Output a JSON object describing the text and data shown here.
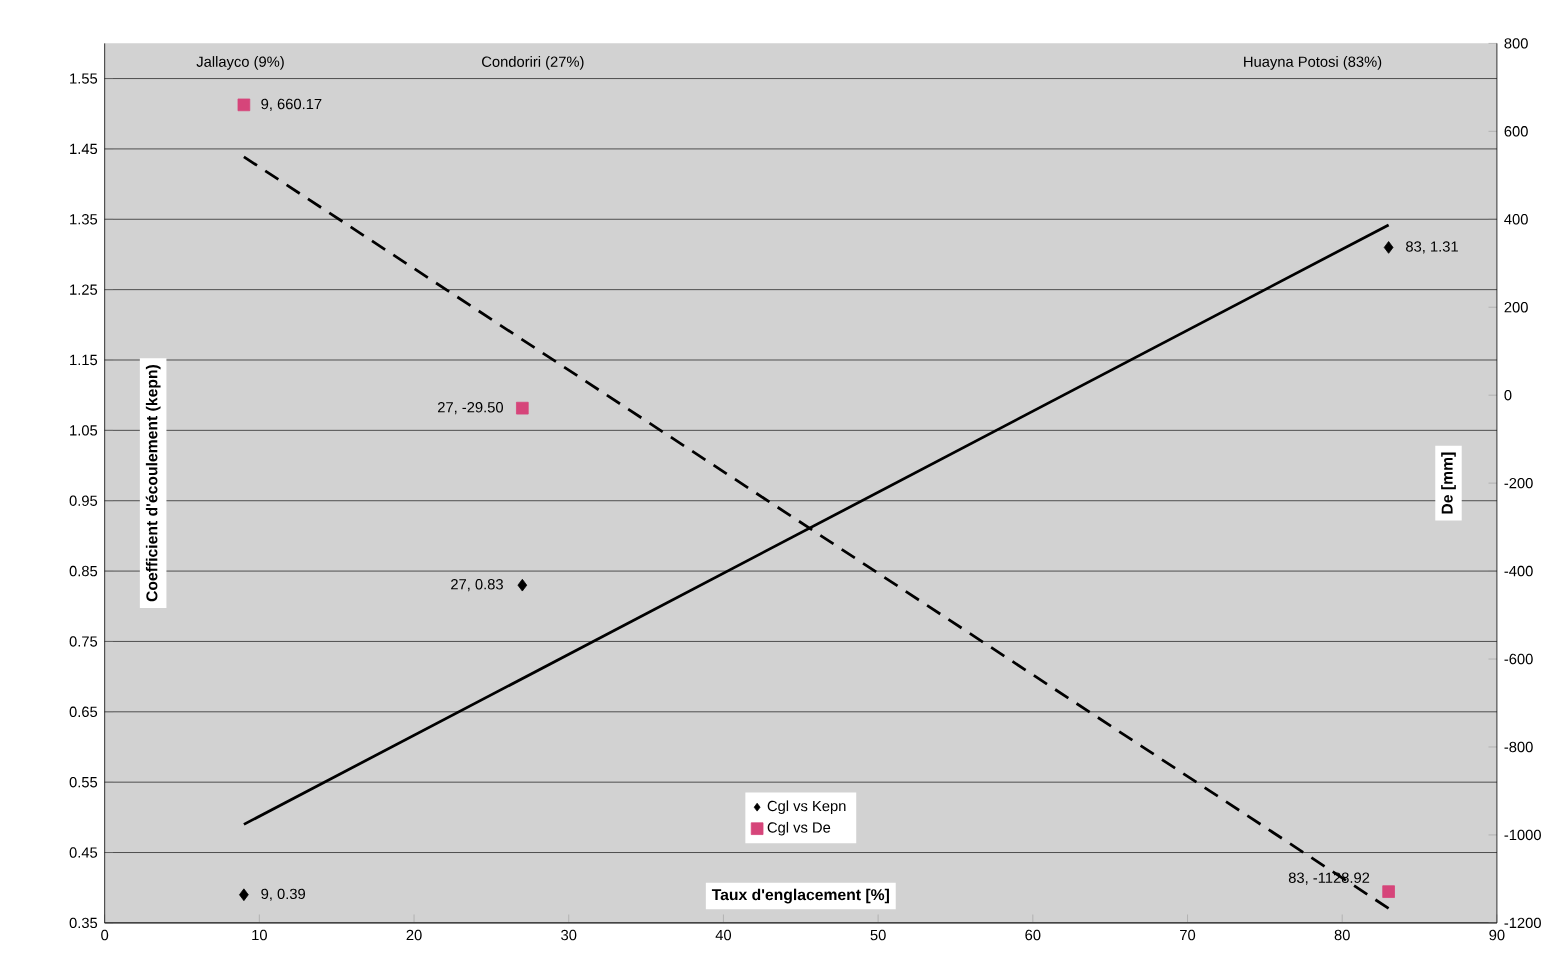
{
  "chart_data": {
    "type": "scatter",
    "xlabel": "Taux d'englacement [%]",
    "ylabel": "Coefficient d'écoulement (kepn)",
    "y2label": "De [mm]",
    "annotations": [
      "Jallayco (9%)",
      "Condoriri (27%)",
      "Huayna Potosi (83%)"
    ],
    "xlim": [
      0,
      90
    ],
    "xticks": [
      0,
      10,
      20,
      30,
      40,
      50,
      60,
      70,
      80,
      90
    ],
    "ylim": [
      0.35,
      1.6
    ],
    "yticks": [
      0.35,
      0.45,
      0.55,
      0.65,
      0.75,
      0.85,
      0.95,
      1.05,
      1.15,
      1.25,
      1.35,
      1.45,
      1.55
    ],
    "y2lim": [
      -1200,
      800
    ],
    "y2ticks": [
      -1200,
      -1000,
      -800,
      -600,
      -400,
      -200,
      0,
      200,
      400,
      600,
      800
    ],
    "grid": "y",
    "legend": "bottom",
    "series": [
      {
        "name": "Cgl vs Kepn",
        "marker": "diamond",
        "color": "#000000",
        "x": [
          9,
          27,
          83
        ],
        "values": [
          0.39,
          0.83,
          1.31
        ],
        "value_labels": [
          "9, 0.39",
          "27, 0.83",
          "83, 1.31"
        ]
      },
      {
        "name": "Cgl vs De",
        "marker": "square",
        "axis": "y2",
        "color": "#d6457a",
        "x": [
          9,
          27,
          83
        ],
        "values": [
          660.17,
          -29.5,
          -1128.92
        ],
        "value_labels": [
          "9, 660.17",
          "27, -29.50",
          "83, -1128.92"
        ]
      },
      {
        "type": "line",
        "line_style": "solid",
        "color": "#000000",
        "x": [
          9,
          83
        ],
        "values": [
          0.49,
          1.342
        ]
      },
      {
        "type": "line",
        "line_style": "dashed",
        "axis": "y2",
        "color": "#000000",
        "x": [
          9,
          83
        ],
        "values": [
          542,
          -1167
        ]
      }
    ]
  }
}
